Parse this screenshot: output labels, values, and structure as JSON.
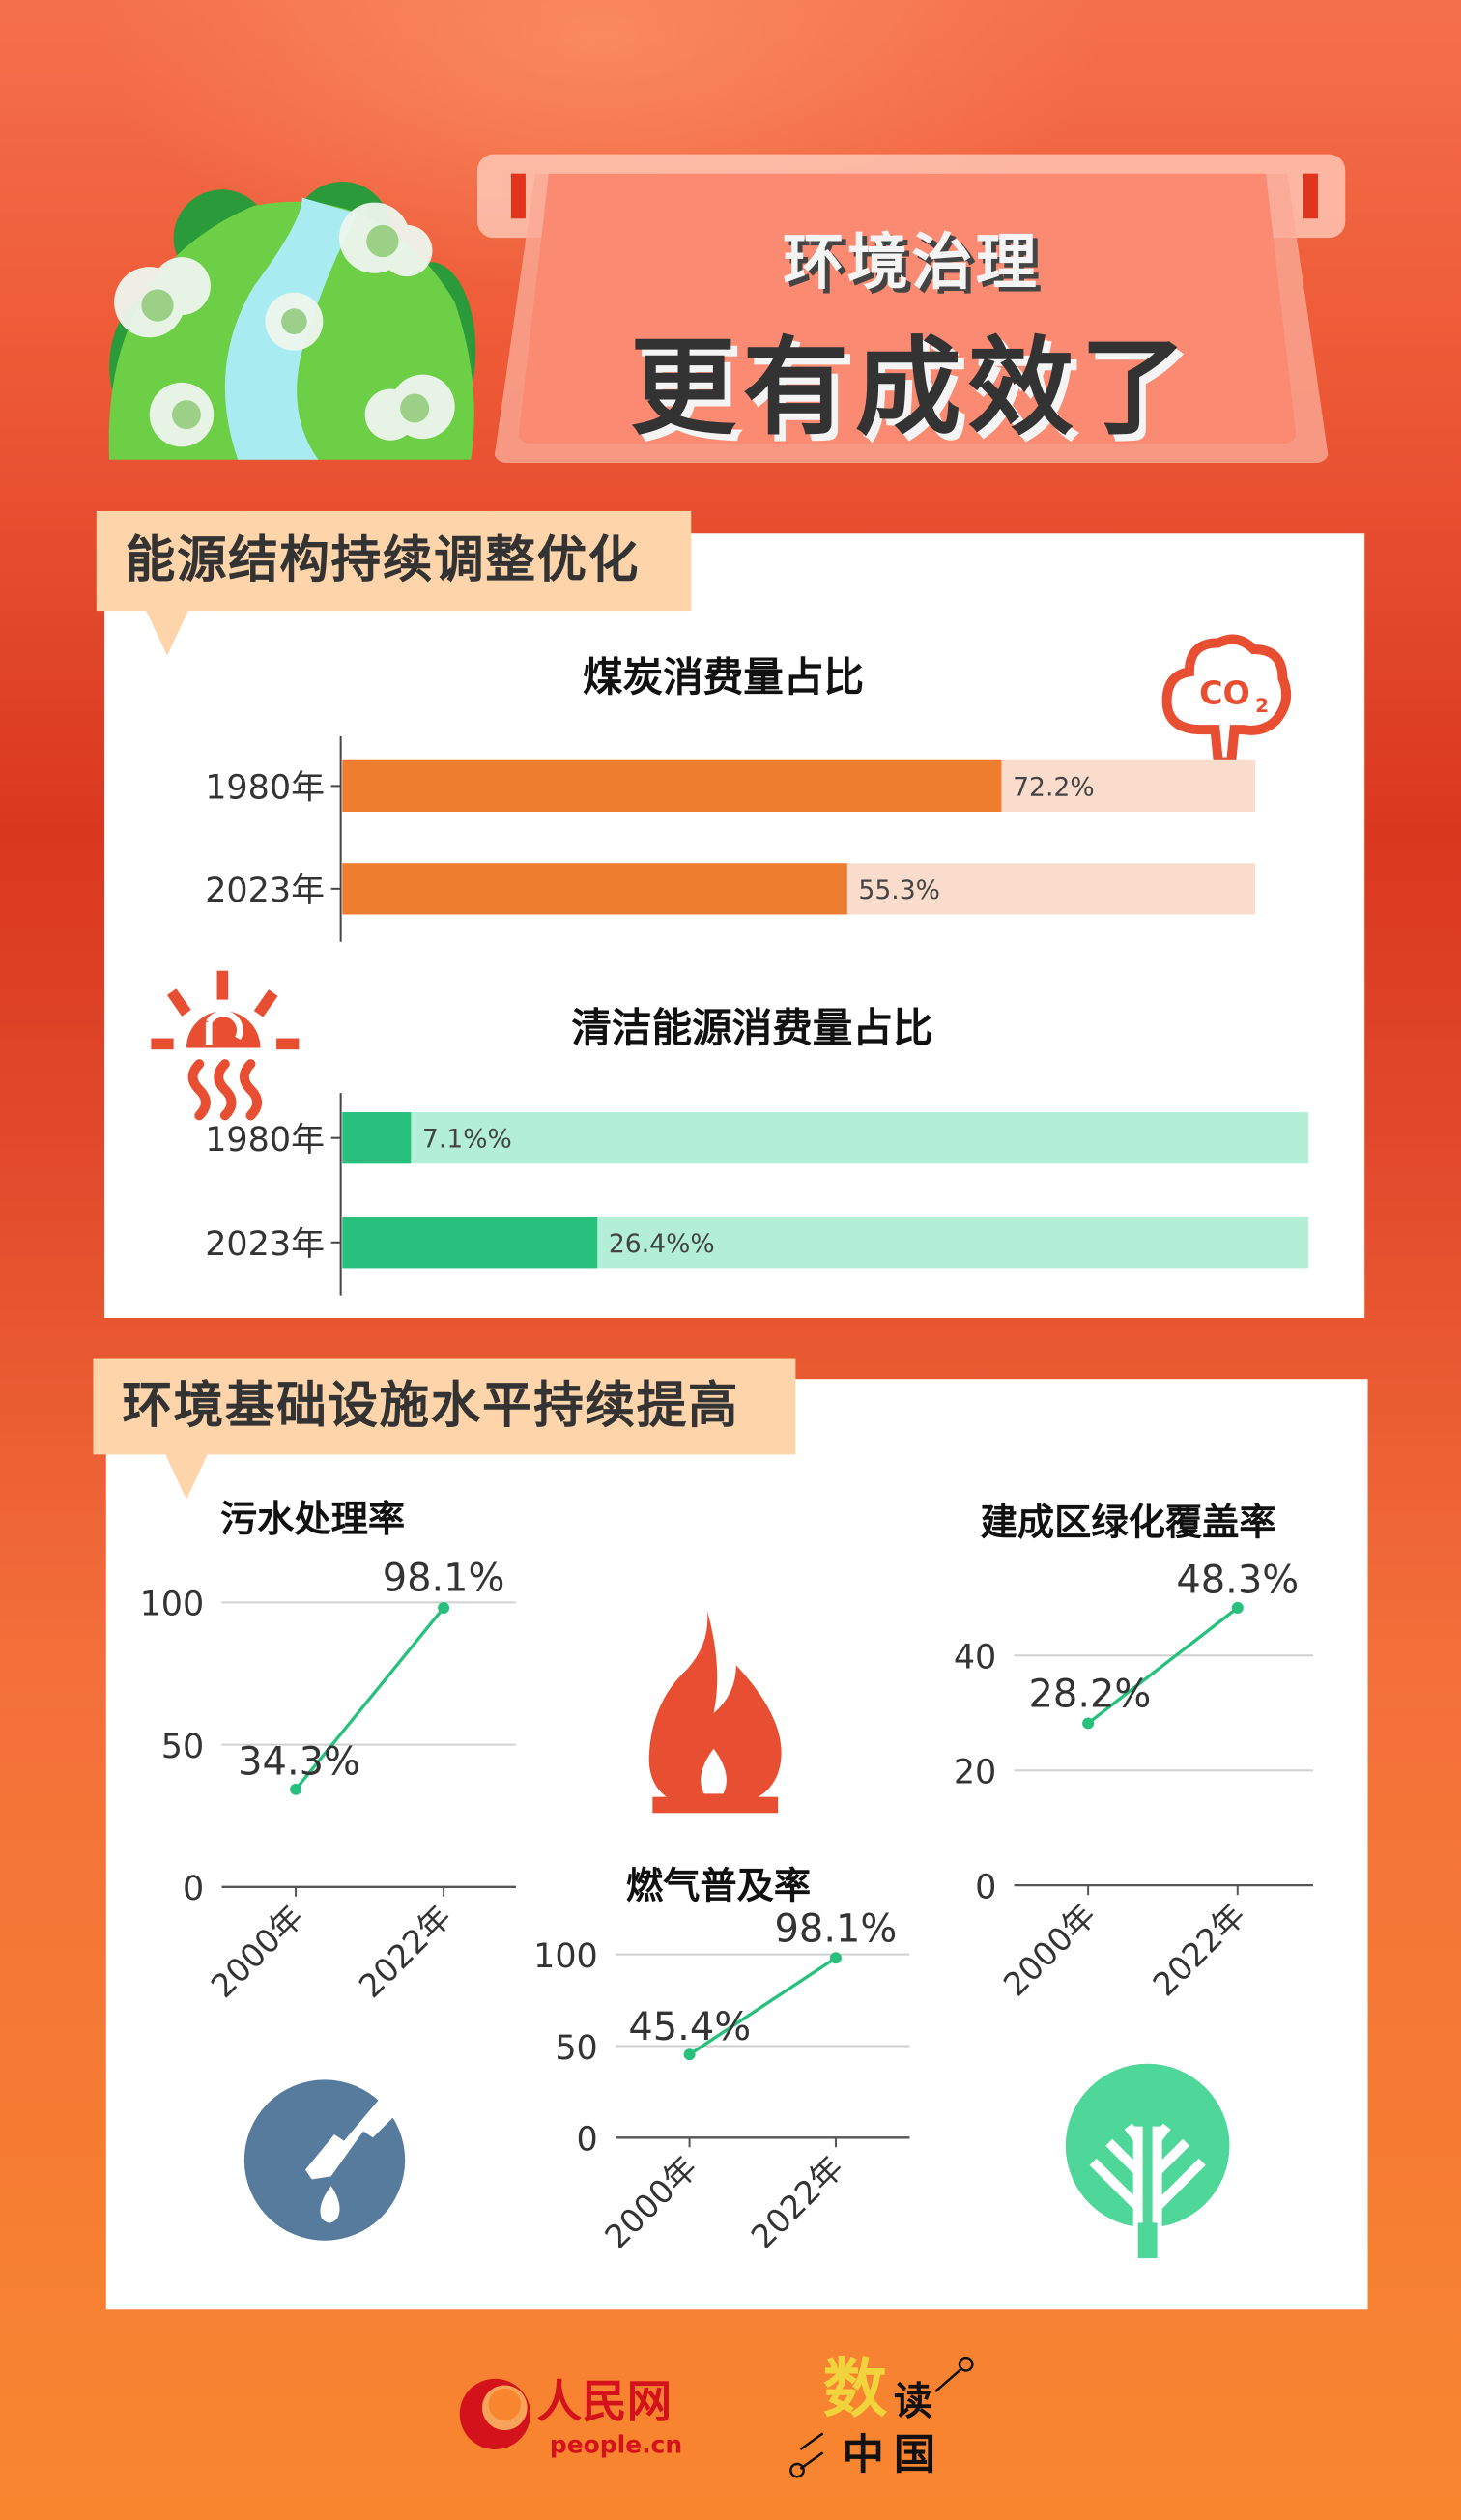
{
  "header": {
    "subtitle": "环境治理",
    "title": "更有成效了"
  },
  "section1": {
    "label": "能源结构持续调整优化"
  },
  "section2": {
    "label": "环境基础设施水平持续提高"
  },
  "colors": {
    "coal_fill": "#ee7d30",
    "coal_track": "#f9dccb",
    "clean_fill": "#27c07d",
    "clean_track": "#b2efd6",
    "line": "#27c07d",
    "icon_red": "#e84e32",
    "water_icon": "#577b9d",
    "tree_icon": "#4fd699",
    "tab_bg": "#fed5ab"
  },
  "icons": [
    "co2-cloud-icon",
    "sun-heat-icon",
    "gas-flame-icon",
    "water-faucet-icon",
    "tree-icon",
    "globe-illustration"
  ],
  "chart_data": [
    {
      "id": "coal",
      "type": "bar",
      "orientation": "horizontal",
      "title": "煤炭消费量占比",
      "categories": [
        "1980年",
        "2023年"
      ],
      "values": [
        72.2,
        55.3
      ],
      "labels": [
        "72.2%",
        "55.3%"
      ],
      "xlim": [
        0,
        100
      ]
    },
    {
      "id": "clean",
      "type": "bar",
      "orientation": "horizontal",
      "title": "清洁能源消费量占比",
      "categories": [
        "1980年",
        "2023年"
      ],
      "values": [
        7.1,
        26.4
      ],
      "labels": [
        "7.1%%",
        "26.4%%"
      ],
      "xlim": [
        0,
        100
      ]
    },
    {
      "id": "sewage",
      "type": "line",
      "title": "污水处理率",
      "categories": [
        "2000年",
        "2022年"
      ],
      "values": [
        34.3,
        98.1
      ],
      "labels": [
        "34.3%",
        "98.1%"
      ],
      "yticks": [
        0,
        50,
        100
      ],
      "ylim": [
        0,
        100
      ],
      "grid": true
    },
    {
      "id": "gas",
      "type": "line",
      "title": "燃气普及率",
      "categories": [
        "2000年",
        "2022年"
      ],
      "values": [
        45.4,
        98.1
      ],
      "labels": [
        "45.4%",
        "98.1%"
      ],
      "yticks": [
        0,
        50,
        100
      ],
      "ylim": [
        0,
        100
      ],
      "grid": true
    },
    {
      "id": "green",
      "type": "line",
      "title": "建成区绿化覆盖率",
      "categories": [
        "2000年",
        "2022年"
      ],
      "values": [
        28.2,
        48.3
      ],
      "labels": [
        "28.2%",
        "48.3%"
      ],
      "yticks": [
        0,
        20,
        40
      ],
      "ylim": [
        0,
        50
      ],
      "grid": true
    }
  ],
  "footer": {
    "logo1_text": "人民网",
    "logo1_domain": "people.cn",
    "logo2_text": [
      "数",
      "读",
      "中",
      "国"
    ]
  }
}
